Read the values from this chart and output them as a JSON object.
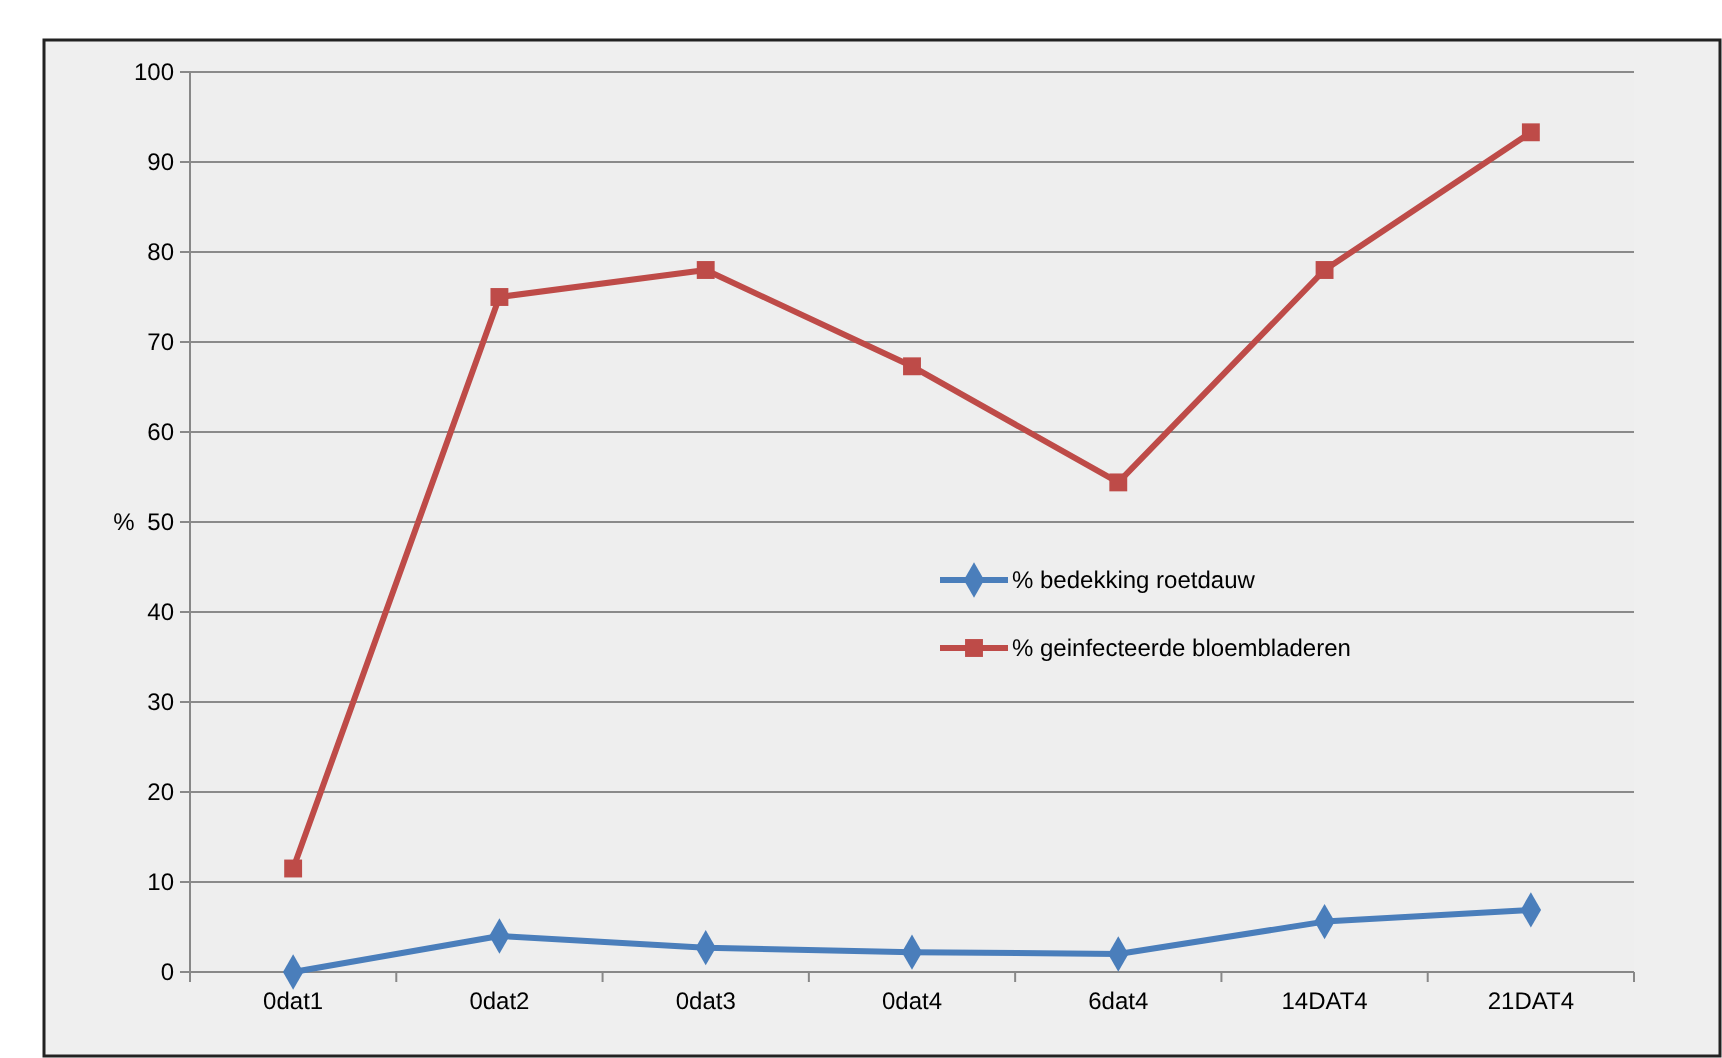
{
  "chart_data": {
    "type": "line",
    "ylabel": "%",
    "categories": [
      "0dat1",
      "0dat2",
      "0dat3",
      "0dat4",
      "6dat4",
      "14DAT4",
      "21DAT4"
    ],
    "series": [
      {
        "name": "% bedekking roetdauw",
        "color": "#4a7ebb",
        "marker": "diamond",
        "values": [
          0,
          4,
          2.7,
          2.2,
          2,
          5.6,
          6.9
        ]
      },
      {
        "name": "% geinfecteerde bloembladeren",
        "color": "#be4b48",
        "marker": "square",
        "values": [
          11.5,
          75,
          78,
          67.3,
          54.4,
          78,
          93.3
        ]
      }
    ],
    "ylim": [
      0,
      100
    ],
    "yticks": [
      0,
      10,
      20,
      30,
      40,
      50,
      60,
      70,
      80,
      90,
      100
    ],
    "grid": "y",
    "legend": "right",
    "line_style": "solid"
  }
}
